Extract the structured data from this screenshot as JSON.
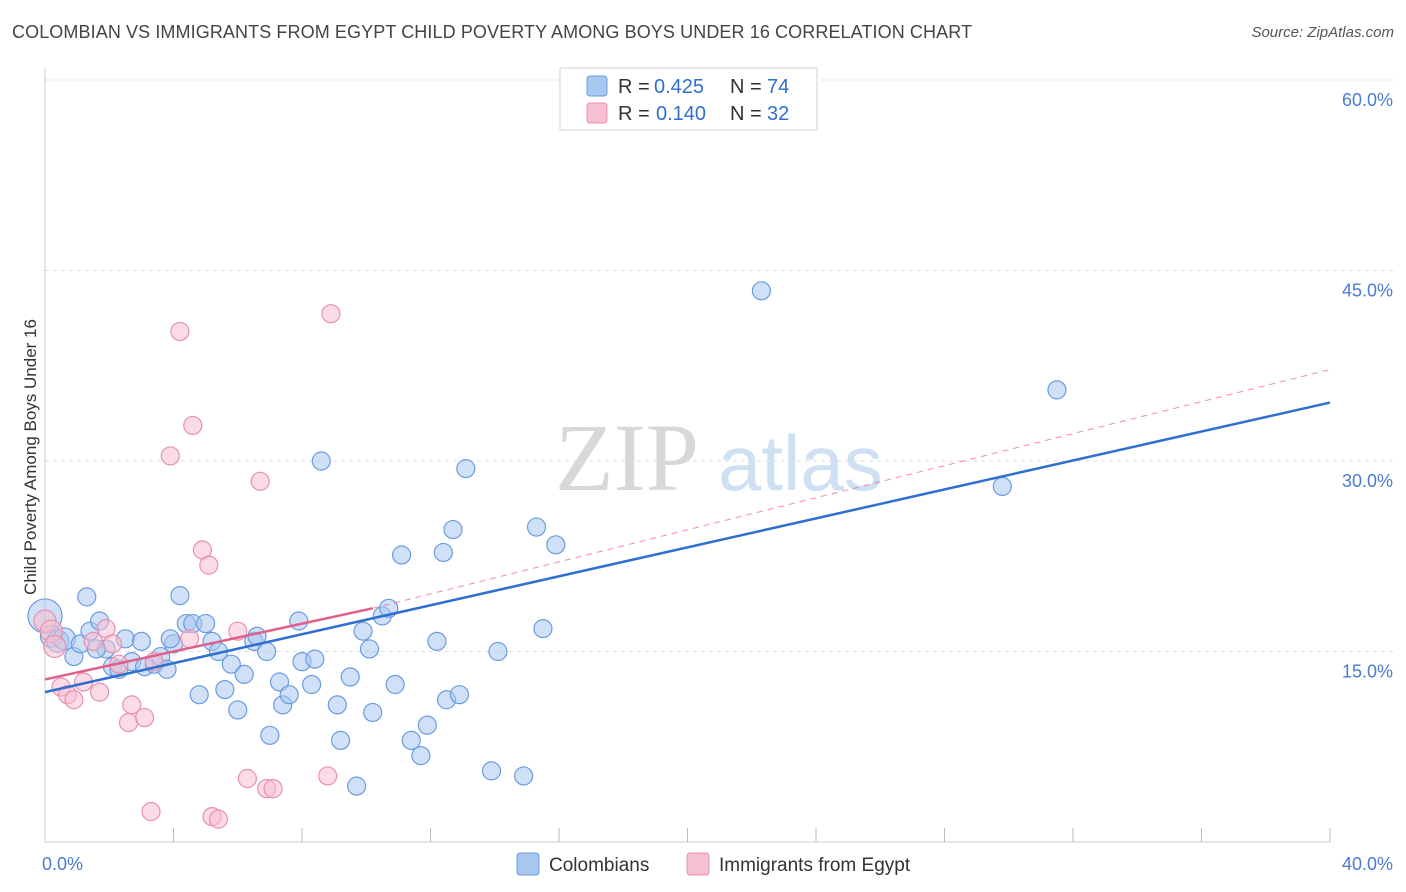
{
  "title": "COLOMBIAN VS IMMIGRANTS FROM EGYPT CHILD POVERTY AMONG BOYS UNDER 16 CORRELATION CHART",
  "source": "Source: ZipAtlas.com",
  "watermark": {
    "zip": "ZIP",
    "atlas": "atlas"
  },
  "legend_top": {
    "rows": [
      {
        "r_label": "R = ",
        "r_value": "0.425",
        "n_label": "N = ",
        "n_value": "74"
      },
      {
        "r_label": "R = ",
        "r_value": "0.140",
        "n_label": "N = ",
        "n_value": "32"
      }
    ]
  },
  "legend_bottom": [
    "Colombians",
    "Immigrants from Egypt"
  ],
  "colors": {
    "blue_fill": "#a9c8f0",
    "blue_stroke": "#6b9be0",
    "blue_line": "#2f6fd0",
    "pink_fill": "#f7c0d2",
    "pink_stroke": "#e890ae",
    "pink_line": "#e0608a",
    "grid": "#dddddd",
    "axis_text": "#4a7bd0"
  },
  "chart_data": {
    "type": "scatter",
    "title": "COLOMBIAN VS IMMIGRANTS FROM EGYPT CHILD POVERTY AMONG BOYS UNDER 16 CORRELATION CHART",
    "xlabel": "",
    "ylabel": "Child Poverty Among Boys Under 16",
    "xlim": [
      0,
      40
    ],
    "ylim": [
      0,
      60
    ],
    "x_tick_labels": [
      "0.0%",
      "40.0%"
    ],
    "y_ticks": [
      15,
      30,
      45,
      60
    ],
    "y_tick_labels": [
      "15.0%",
      "30.0%",
      "45.0%",
      "60.0%"
    ],
    "series": [
      {
        "name": "Colombians",
        "R": 0.425,
        "N": 74,
        "trend": {
          "x": [
            0,
            40
          ],
          "y": [
            11.8,
            34.6
          ]
        },
        "points": [
          [
            0.0,
            17.8
          ],
          [
            0.2,
            16.2
          ],
          [
            0.4,
            15.8
          ],
          [
            0.6,
            16.0
          ],
          [
            0.9,
            14.6
          ],
          [
            1.1,
            15.6
          ],
          [
            1.3,
            19.3
          ],
          [
            1.4,
            16.6
          ],
          [
            1.7,
            17.4
          ],
          [
            1.9,
            15.2
          ],
          [
            2.1,
            13.8
          ],
          [
            2.3,
            13.6
          ],
          [
            2.5,
            16.0
          ],
          [
            2.7,
            14.2
          ],
          [
            3.0,
            15.8
          ],
          [
            3.1,
            13.8
          ],
          [
            3.4,
            14.0
          ],
          [
            3.6,
            14.6
          ],
          [
            3.8,
            13.6
          ],
          [
            4.0,
            15.6
          ],
          [
            4.2,
            19.4
          ],
          [
            4.4,
            17.2
          ],
          [
            4.6,
            17.2
          ],
          [
            4.8,
            11.6
          ],
          [
            5.2,
            15.8
          ],
          [
            5.4,
            15.0
          ],
          [
            5.6,
            12.0
          ],
          [
            5.8,
            14.0
          ],
          [
            6.0,
            10.4
          ],
          [
            6.2,
            13.2
          ],
          [
            6.5,
            15.8
          ],
          [
            6.6,
            16.2
          ],
          [
            6.9,
            15.0
          ],
          [
            7.0,
            8.4
          ],
          [
            7.3,
            12.6
          ],
          [
            7.4,
            10.8
          ],
          [
            7.6,
            11.6
          ],
          [
            7.9,
            17.4
          ],
          [
            8.0,
            14.2
          ],
          [
            8.3,
            12.4
          ],
          [
            8.4,
            14.4
          ],
          [
            8.6,
            30.0
          ],
          [
            9.1,
            10.8
          ],
          [
            9.2,
            8.0
          ],
          [
            9.5,
            13.0
          ],
          [
            9.7,
            4.4
          ],
          [
            9.9,
            16.6
          ],
          [
            10.1,
            15.2
          ],
          [
            10.2,
            10.2
          ],
          [
            10.5,
            17.8
          ],
          [
            10.7,
            18.4
          ],
          [
            10.9,
            12.4
          ],
          [
            11.1,
            22.6
          ],
          [
            11.4,
            8.0
          ],
          [
            11.7,
            6.8
          ],
          [
            11.9,
            9.2
          ],
          [
            12.2,
            15.8
          ],
          [
            12.4,
            22.8
          ],
          [
            12.5,
            11.2
          ],
          [
            12.7,
            24.6
          ],
          [
            12.9,
            11.6
          ],
          [
            13.1,
            29.4
          ],
          [
            13.9,
            5.6
          ],
          [
            14.1,
            15.0
          ],
          [
            14.9,
            5.2
          ],
          [
            15.3,
            24.8
          ],
          [
            15.5,
            16.8
          ],
          [
            15.9,
            23.4
          ],
          [
            22.3,
            43.4
          ],
          [
            29.8,
            28.0
          ],
          [
            31.5,
            35.6
          ],
          [
            3.9,
            16.0
          ],
          [
            1.6,
            15.2
          ],
          [
            5.0,
            17.2
          ]
        ]
      },
      {
        "name": "Immigrants from Egypt",
        "R": 0.14,
        "N": 32,
        "trend": {
          "x": [
            0,
            10.2
          ],
          "y": [
            12.8,
            18.4
          ]
        },
        "trend_ext": {
          "x": [
            10.2,
            40
          ],
          "y": [
            18.4,
            37.2
          ]
        },
        "points": [
          [
            0.0,
            17.4
          ],
          [
            0.2,
            16.6
          ],
          [
            0.3,
            15.4
          ],
          [
            0.5,
            12.2
          ],
          [
            0.7,
            11.6
          ],
          [
            0.9,
            11.2
          ],
          [
            1.2,
            12.6
          ],
          [
            1.5,
            15.8
          ],
          [
            1.7,
            11.8
          ],
          [
            1.9,
            16.8
          ],
          [
            2.1,
            15.6
          ],
          [
            2.3,
            14.0
          ],
          [
            2.6,
            9.4
          ],
          [
            2.7,
            10.8
          ],
          [
            3.1,
            9.8
          ],
          [
            3.3,
            2.4
          ],
          [
            3.4,
            14.2
          ],
          [
            3.9,
            30.4
          ],
          [
            4.2,
            40.2
          ],
          [
            4.5,
            16.0
          ],
          [
            4.6,
            32.8
          ],
          [
            4.9,
            23.0
          ],
          [
            5.1,
            21.8
          ],
          [
            5.2,
            2.0
          ],
          [
            5.4,
            1.8
          ],
          [
            6.0,
            16.6
          ],
          [
            6.3,
            5.0
          ],
          [
            6.7,
            28.4
          ],
          [
            6.9,
            4.2
          ],
          [
            7.1,
            4.2
          ],
          [
            8.8,
            5.2
          ],
          [
            8.9,
            41.6
          ]
        ]
      }
    ]
  }
}
